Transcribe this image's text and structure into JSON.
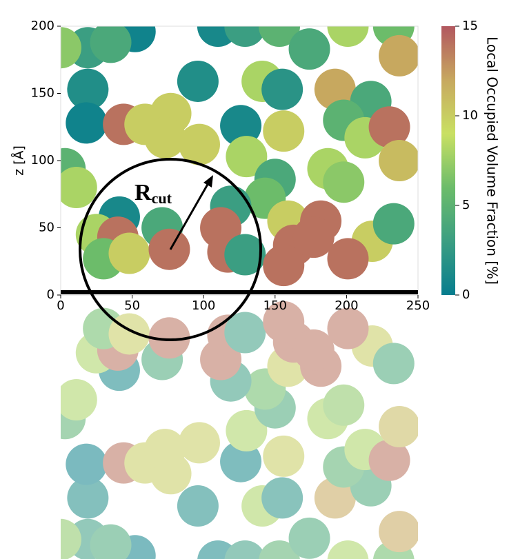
{
  "chart_data": {
    "type": "scatter",
    "ylabel": "z [Å]",
    "xlim": [
      0,
      250
    ],
    "ylim": [
      0,
      200
    ],
    "xticks": [
      0,
      50,
      100,
      150,
      200,
      250
    ],
    "yticks": [
      0,
      50,
      100,
      150,
      200
    ],
    "x": [
      52,
      19,
      35,
      0,
      110,
      129,
      153,
      201,
      233,
      174,
      237,
      96,
      19,
      141,
      155,
      192,
      217,
      18,
      44,
      59,
      77,
      73,
      97,
      126,
      156,
      198,
      213,
      230,
      237,
      130,
      187,
      198,
      3,
      11,
      150,
      143,
      119,
      41,
      71,
      112,
      159,
      182,
      218,
      233,
      25,
      40,
      30,
      48,
      76,
      117,
      129,
      163,
      156,
      201,
      177
    ],
    "y": [
      196,
      184,
      188,
      184,
      200,
      200,
      200,
      200,
      200,
      183,
      178,
      159,
      153,
      159,
      153,
      153,
      144,
      128,
      127,
      127,
      135,
      117,
      112,
      126,
      122,
      130,
      117,
      125,
      100,
      103,
      94,
      84,
      94,
      80,
      86,
      72,
      66,
      58,
      50,
      50,
      55,
      55,
      40,
      53,
      45,
      43,
      27,
      31,
      34,
      32,
      30,
      37,
      22,
      27,
      43
    ],
    "c": [
      0.5,
      3,
      4,
      7,
      1,
      3,
      5,
      8,
      6,
      4,
      12,
      1.5,
      1.5,
      8,
      2,
      12,
      4,
      0.5,
      14,
      10,
      10,
      10,
      10,
      1,
      10,
      5,
      8,
      14,
      11,
      8,
      8,
      7,
      5,
      8,
      4,
      6,
      3,
      1,
      4,
      14,
      10,
      14,
      10,
      4,
      8,
      14,
      6,
      10,
      14,
      14,
      3,
      14,
      14,
      14,
      14
    ],
    "colormap": [
      "#077d8e",
      "#3b9e82",
      "#6cbc6a",
      "#c9e063",
      "#c7a85f",
      "#b2575f"
    ],
    "clim": [
      0,
      15
    ],
    "cticks": [
      0,
      5,
      10,
      15
    ],
    "clabel": "Local Occupied Volume Fraction [%]",
    "annotation": "R",
    "annotation_sub": "cut"
  }
}
